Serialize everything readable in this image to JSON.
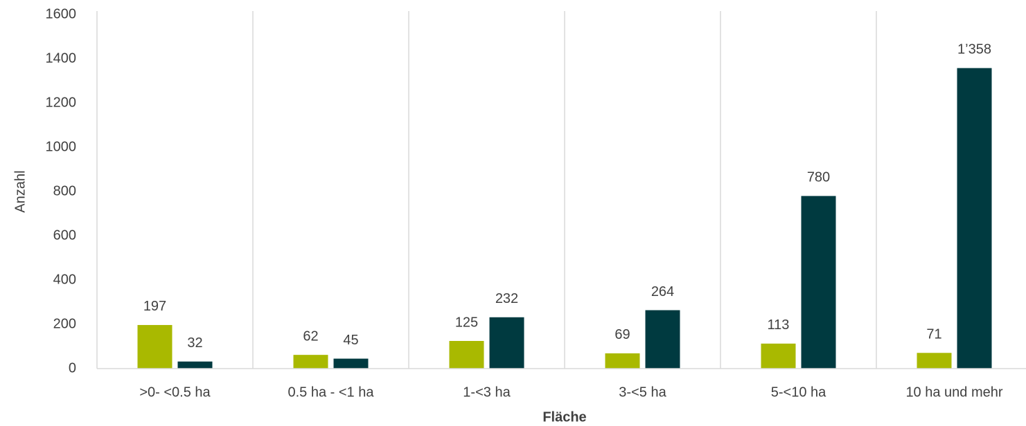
{
  "chart_data": {
    "type": "bar",
    "xlabel": "Fläche",
    "ylabel": "Anzahl",
    "categories": [
      ">0- <0.5 ha",
      "0.5 ha - <1 ha",
      "1-<3 ha",
      "3-<5 ha",
      "5-<10 ha",
      "10 ha und mehr"
    ],
    "series": [
      {
        "color": "#a9b900",
        "values": [
          197,
          62,
          125,
          69,
          113,
          71
        ]
      },
      {
        "color": "#003a40",
        "values": [
          32,
          45,
          232,
          264,
          780,
          1358
        ],
        "value_labels": [
          "32",
          "45",
          "232",
          "264",
          "780",
          "1’358"
        ]
      }
    ],
    "ylim": [
      0,
      1600
    ],
    "yticks": [
      0,
      200,
      400,
      600,
      800,
      1000,
      1200,
      1400,
      1600
    ]
  }
}
